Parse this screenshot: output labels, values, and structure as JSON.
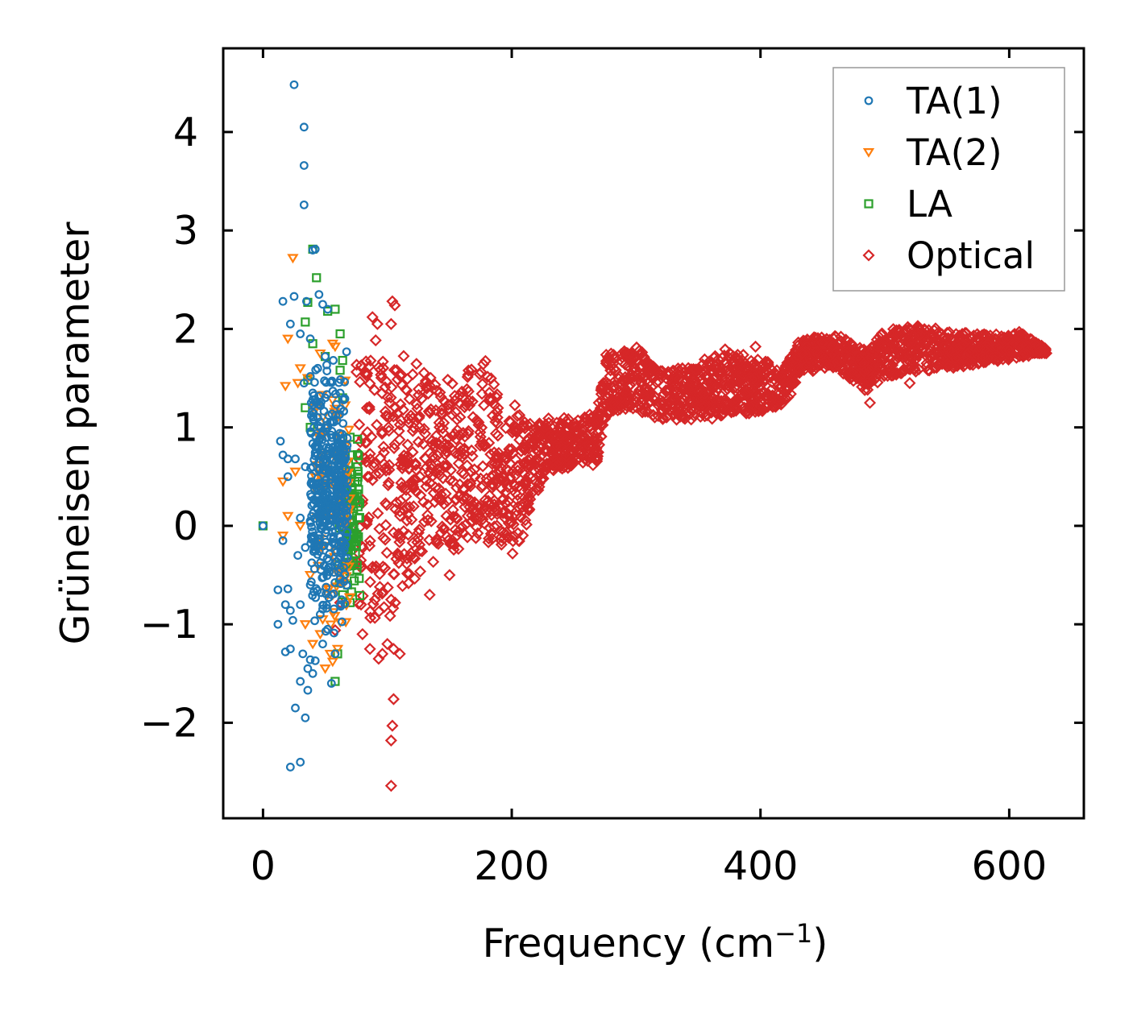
{
  "chart_data": {
    "type": "scatter",
    "title": "",
    "xlabel": "Frequency (cm",
    "xlabel_superscript": "−1",
    "xlabel_suffix": ")",
    "ylabel": "Grüneisen parameter",
    "xlim": [
      -32,
      660
    ],
    "ylim": [
      -2.97,
      4.85
    ],
    "xticks": [
      0,
      200,
      400,
      600
    ],
    "xtick_labels": [
      "0",
      "200",
      "400",
      "600"
    ],
    "yticks": [
      -2,
      -1,
      0,
      1,
      2,
      3,
      4
    ],
    "ytick_labels": [
      "−2",
      "−1",
      "0",
      "1",
      "2",
      "3",
      "4"
    ],
    "grid": false,
    "legend_position": "top-right",
    "series": [
      {
        "name": "TA(1)",
        "marker": "circle",
        "color": "#1f77b4",
        "points": [
          [
            0,
            0
          ],
          [
            25,
            4.48
          ],
          [
            33,
            4.05
          ],
          [
            33,
            3.66
          ],
          [
            33,
            3.26
          ],
          [
            40,
            2.8
          ],
          [
            42,
            2.81
          ],
          [
            25,
            2.33
          ],
          [
            16,
            2.28
          ],
          [
            35,
            2.28
          ],
          [
            45,
            2.35
          ],
          [
            48,
            2.25
          ],
          [
            52,
            2.2
          ],
          [
            22,
            2.05
          ],
          [
            30,
            1.95
          ],
          [
            38,
            1.9
          ],
          [
            50,
            1.72
          ],
          [
            44,
            1.6
          ],
          [
            33,
            1.45
          ],
          [
            40,
            1.28
          ],
          [
            50,
            1.3
          ],
          [
            44,
            1.1
          ],
          [
            14,
            0.86
          ],
          [
            16,
            0.72
          ],
          [
            20,
            0.68
          ],
          [
            26,
            0.68
          ],
          [
            34,
            0.6
          ],
          [
            20,
            0.5
          ],
          [
            30,
            0.08
          ],
          [
            38,
            0.05
          ],
          [
            16,
            -0.15
          ],
          [
            34,
            -0.22
          ],
          [
            28,
            -0.3
          ],
          [
            38,
            -0.6
          ],
          [
            12,
            -0.65
          ],
          [
            20,
            -0.64
          ],
          [
            18,
            -0.8
          ],
          [
            22,
            -0.86
          ],
          [
            24,
            -0.96
          ],
          [
            12,
            -1.0
          ],
          [
            30,
            -0.8
          ],
          [
            18,
            -1.28
          ],
          [
            22,
            -1.25
          ],
          [
            32,
            -1.3
          ],
          [
            38,
            -1.36
          ],
          [
            42,
            -1.37
          ],
          [
            36,
            -1.45
          ],
          [
            40,
            -1.5
          ],
          [
            30,
            -1.58
          ],
          [
            36,
            -1.67
          ],
          [
            55,
            -1.6
          ],
          [
            26,
            -1.85
          ],
          [
            34,
            -1.95
          ],
          [
            22,
            -2.45
          ],
          [
            30,
            -2.4
          ],
          [
            48,
            -1.2
          ],
          [
            52,
            -1.05
          ],
          [
            55,
            -0.7
          ],
          [
            60,
            -0.4
          ],
          [
            45,
            -0.2
          ],
          [
            50,
            0.1
          ],
          [
            56,
            0.3
          ],
          [
            48,
            0.6
          ],
          [
            60,
            0.8
          ],
          [
            54,
            1.05
          ],
          [
            46,
            -0.9
          ],
          [
            58,
            -1.3
          ]
        ],
        "cluster": {
          "x_range": [
            38,
            68
          ],
          "y_range": [
            -1.1,
            1.8
          ],
          "count": 420
        }
      },
      {
        "name": "TA(2)",
        "marker": "triangle-down",
        "color": "#ff7f0e",
        "points": [
          [
            24,
            2.72
          ],
          [
            20,
            1.9
          ],
          [
            18,
            1.42
          ],
          [
            28,
            1.45
          ],
          [
            36,
            1.5
          ],
          [
            30,
            1.6
          ],
          [
            46,
            1.75
          ],
          [
            56,
            1.85
          ],
          [
            58,
            1.82
          ],
          [
            40,
            1.2
          ],
          [
            45,
            0.9
          ],
          [
            16,
            0.45
          ],
          [
            26,
            0.55
          ],
          [
            20,
            0.1
          ],
          [
            30,
            0.0
          ],
          [
            16,
            -0.1
          ],
          [
            38,
            -0.5
          ],
          [
            34,
            -1.0
          ],
          [
            46,
            -1.1
          ],
          [
            40,
            -1.2
          ],
          [
            54,
            -1.3
          ],
          [
            50,
            -1.45
          ],
          [
            56,
            -1.38
          ],
          [
            60,
            -1.25
          ],
          [
            48,
            -0.95
          ],
          [
            52,
            -0.7
          ],
          [
            44,
            0.3
          ],
          [
            58,
            0.5
          ],
          [
            62,
            -0.2
          ]
        ],
        "cluster": {
          "x_range": [
            42,
            70
          ],
          "y_range": [
            -1.3,
            1.6
          ],
          "count": 90
        }
      },
      {
        "name": "LA",
        "marker": "square",
        "color": "#2ca02c",
        "points": [
          [
            0,
            0
          ],
          [
            40,
            2.81
          ],
          [
            43,
            2.52
          ],
          [
            36,
            2.27
          ],
          [
            58,
            2.2
          ],
          [
            52,
            2.18
          ],
          [
            34,
            2.07
          ],
          [
            62,
            1.95
          ],
          [
            40,
            1.85
          ],
          [
            50,
            1.72
          ],
          [
            64,
            1.68
          ],
          [
            36,
            1.48
          ],
          [
            62,
            1.58
          ],
          [
            34,
            1.2
          ],
          [
            64,
            1.3
          ],
          [
            38,
            1.0
          ],
          [
            70,
            0.9
          ],
          [
            76,
            0.88
          ],
          [
            72,
            0.72
          ],
          [
            76,
            0.6
          ],
          [
            74,
            0.45
          ],
          [
            70,
            0.2
          ],
          [
            72,
            -0.1
          ],
          [
            66,
            -0.4
          ],
          [
            68,
            -0.6
          ],
          [
            64,
            -0.7
          ],
          [
            70,
            -0.78
          ],
          [
            60,
            -1.3
          ],
          [
            58,
            -1.58
          ]
        ],
        "cluster": {
          "x_range": [
            60,
            78
          ],
          "y_range": [
            -0.75,
            0.9
          ],
          "count": 110
        }
      },
      {
        "name": "Optical",
        "marker": "diamond",
        "color": "#d62728",
        "points": [
          [
            103,
            -2.64
          ],
          [
            103,
            -2.18
          ],
          [
            104,
            -2.03
          ],
          [
            105,
            -1.76
          ],
          [
            104,
            2.28
          ],
          [
            106,
            2.24
          ],
          [
            103,
            2.05
          ],
          [
            100,
            -1.2
          ],
          [
            105,
            -1.25
          ],
          [
            110,
            -1.3
          ],
          [
            93,
            -1.35
          ],
          [
            96,
            -1.3
          ],
          [
            86,
            -1.25
          ],
          [
            80,
            -1.1
          ],
          [
            134,
            -0.7
          ],
          [
            150,
            -0.5
          ],
          [
            88,
            2.12
          ],
          [
            92,
            2.05
          ],
          [
            270,
            1.25
          ],
          [
            396,
            1.82
          ],
          [
            488,
            1.25
          ],
          [
            520,
            1.45
          ],
          [
            600,
            1.78
          ],
          [
            625,
            1.78
          ],
          [
            62,
            -0.78
          ],
          [
            58,
            -1.06
          ],
          [
            90,
            -0.75
          ]
        ],
        "envelope": [
          {
            "x": 75,
            "y_min": -1.05,
            "y_max": 1.7
          },
          {
            "x": 85,
            "y_min": -1.1,
            "y_max": 2.0
          },
          {
            "x": 95,
            "y_min": -1.0,
            "y_max": 1.95
          },
          {
            "x": 110,
            "y_min": -0.85,
            "y_max": 1.8
          },
          {
            "x": 125,
            "y_min": -0.55,
            "y_max": 1.8
          },
          {
            "x": 140,
            "y_min": -0.4,
            "y_max": 1.6
          },
          {
            "x": 155,
            "y_min": -0.3,
            "y_max": 1.55
          },
          {
            "x": 170,
            "y_min": -0.2,
            "y_max": 1.75
          },
          {
            "x": 183,
            "y_min": -0.3,
            "y_max": 1.88
          },
          {
            "x": 192,
            "y_min": -0.25,
            "y_max": 1.05
          },
          {
            "x": 205,
            "y_min": -0.35,
            "y_max": 1.35
          },
          {
            "x": 215,
            "y_min": 0.15,
            "y_max": 1.05
          },
          {
            "x": 230,
            "y_min": 0.5,
            "y_max": 1.1
          },
          {
            "x": 250,
            "y_min": 0.6,
            "y_max": 1.1
          },
          {
            "x": 268,
            "y_min": 0.6,
            "y_max": 1.15
          },
          {
            "x": 276,
            "y_min": 1.1,
            "y_max": 1.75
          },
          {
            "x": 300,
            "y_min": 1.15,
            "y_max": 1.85
          },
          {
            "x": 320,
            "y_min": 1.05,
            "y_max": 1.6
          },
          {
            "x": 345,
            "y_min": 1.05,
            "y_max": 1.65
          },
          {
            "x": 375,
            "y_min": 1.1,
            "y_max": 1.82
          },
          {
            "x": 400,
            "y_min": 1.15,
            "y_max": 1.7
          },
          {
            "x": 420,
            "y_min": 1.2,
            "y_max": 1.65
          },
          {
            "x": 432,
            "y_min": 1.55,
            "y_max": 1.92
          },
          {
            "x": 460,
            "y_min": 1.6,
            "y_max": 1.95
          },
          {
            "x": 485,
            "y_min": 1.35,
            "y_max": 1.8
          },
          {
            "x": 500,
            "y_min": 1.5,
            "y_max": 2.0
          },
          {
            "x": 530,
            "y_min": 1.55,
            "y_max": 2.05
          },
          {
            "x": 560,
            "y_min": 1.6,
            "y_max": 1.98
          },
          {
            "x": 590,
            "y_min": 1.65,
            "y_max": 1.95
          },
          {
            "x": 610,
            "y_min": 1.7,
            "y_max": 1.98
          },
          {
            "x": 630,
            "y_min": 1.75,
            "y_max": 1.8
          }
        ],
        "cluster_count": 2600
      }
    ]
  }
}
